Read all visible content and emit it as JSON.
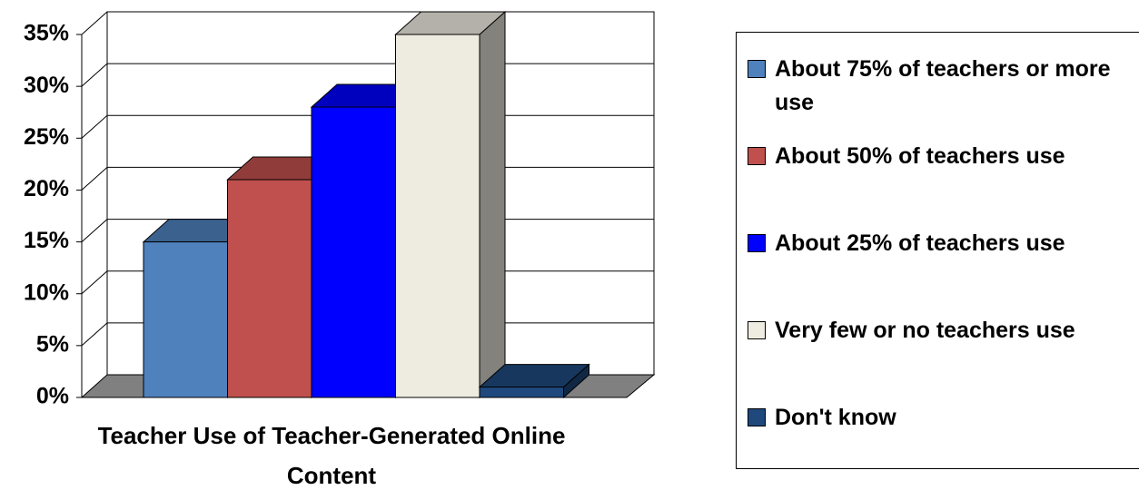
{
  "chart_data": {
    "type": "bar3d",
    "categories": [
      "Teacher Use of Teacher-Generated Online Content"
    ],
    "series": [
      {
        "name": "About 75% of teachers or more use",
        "color": "#4f81bd",
        "values": [
          15
        ]
      },
      {
        "name": "About 50% of teachers use",
        "color": "#c0504d",
        "values": [
          21
        ]
      },
      {
        "name": "About 25% of teachers use",
        "color": "#0000ff",
        "values": [
          28
        ]
      },
      {
        "name": "Very few or no teachers use",
        "color": "#eeece1",
        "values": [
          35
        ]
      },
      {
        "name": "Don't know",
        "color": "#1f497d",
        "values": [
          1
        ]
      }
    ],
    "ylim": [
      0,
      35
    ],
    "yticks": [
      {
        "value": 0,
        "label": "0%"
      },
      {
        "value": 5,
        "label": "5%"
      },
      {
        "value": 10,
        "label": "10%"
      },
      {
        "value": 15,
        "label": "15%"
      },
      {
        "value": 20,
        "label": "20%"
      },
      {
        "value": 25,
        "label": "25%"
      },
      {
        "value": 30,
        "label": "30%"
      },
      {
        "value": 35,
        "label": "35%"
      }
    ],
    "grid": true,
    "legend": "right"
  }
}
